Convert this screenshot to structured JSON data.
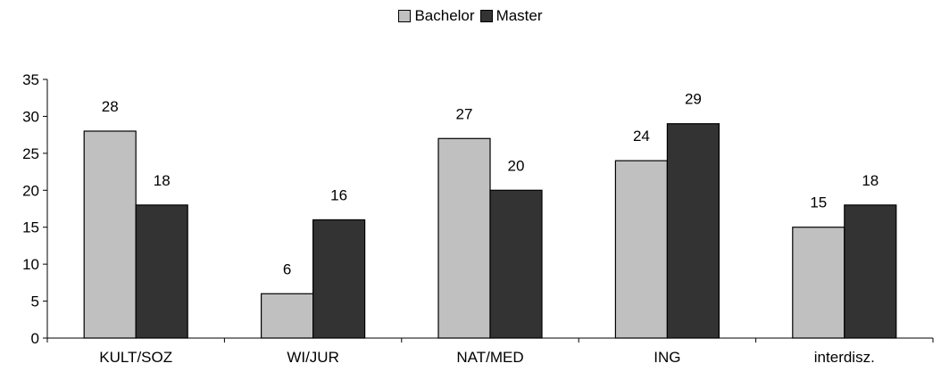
{
  "chart_data": {
    "type": "bar",
    "categories": [
      "KULT/SOZ",
      "WI/JUR",
      "NAT/MED",
      "ING",
      "interdisz."
    ],
    "series": [
      {
        "name": "Bachelor",
        "values": [
          28,
          6,
          27,
          24,
          15
        ],
        "color": "#c0c0c0"
      },
      {
        "name": "Master",
        "values": [
          18,
          16,
          20,
          29,
          18
        ],
        "color": "#333333"
      }
    ],
    "title": "",
    "xlabel": "",
    "ylabel": "",
    "ylim": [
      0,
      35
    ],
    "yticks": [
      0,
      5,
      10,
      15,
      20,
      25,
      30,
      35
    ],
    "grid": false,
    "legend_position": "top"
  }
}
